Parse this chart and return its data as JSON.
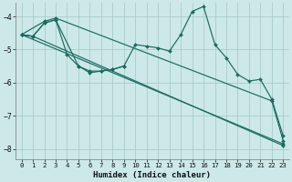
{
  "xlabel": "Humidex (Indice chaleur)",
  "bg_color": "#cce8e8",
  "grid_color": "#aacccc",
  "line_color": "#1a6b60",
  "xlim": [
    -0.5,
    23.5
  ],
  "ylim": [
    -8.3,
    -3.6
  ],
  "yticks": [
    -8,
    -7,
    -6,
    -5,
    -4
  ],
  "xticks": [
    0,
    1,
    2,
    3,
    4,
    5,
    6,
    7,
    8,
    9,
    10,
    11,
    12,
    13,
    14,
    15,
    16,
    17,
    18,
    19,
    20,
    21,
    22,
    23
  ],
  "lines": [
    {
      "x": [
        0,
        1,
        2,
        3,
        4,
        5,
        6,
        7,
        8,
        9,
        10,
        11,
        12,
        13,
        14,
        15,
        16,
        17,
        18,
        19,
        20,
        21,
        22,
        23
      ],
      "y": [
        -4.55,
        -4.6,
        -4.2,
        -4.1,
        -5.15,
        -5.5,
        -5.7,
        -5.65,
        -5.6,
        -5.5,
        -4.85,
        -4.9,
        -4.95,
        -5.05,
        -4.55,
        -3.85,
        -3.7,
        -4.85,
        -5.25,
        -5.75,
        -5.95,
        -5.9,
        -6.5,
        -7.6
      ]
    },
    {
      "x": [
        0,
        1,
        2,
        3,
        5,
        6,
        7,
        8,
        9
      ],
      "y": [
        -4.55,
        -4.6,
        -4.2,
        -4.1,
        -5.5,
        -5.65,
        -5.65,
        -5.6,
        -5.5
      ]
    },
    {
      "x": [
        0,
        23
      ],
      "y": [
        -4.55,
        -7.85
      ]
    },
    {
      "x": [
        0,
        2,
        3,
        22,
        23
      ],
      "y": [
        -4.55,
        -4.15,
        -4.05,
        -6.55,
        -7.75
      ]
    },
    {
      "x": [
        0,
        1,
        23
      ],
      "y": [
        -4.55,
        -4.6,
        -7.9
      ]
    }
  ]
}
